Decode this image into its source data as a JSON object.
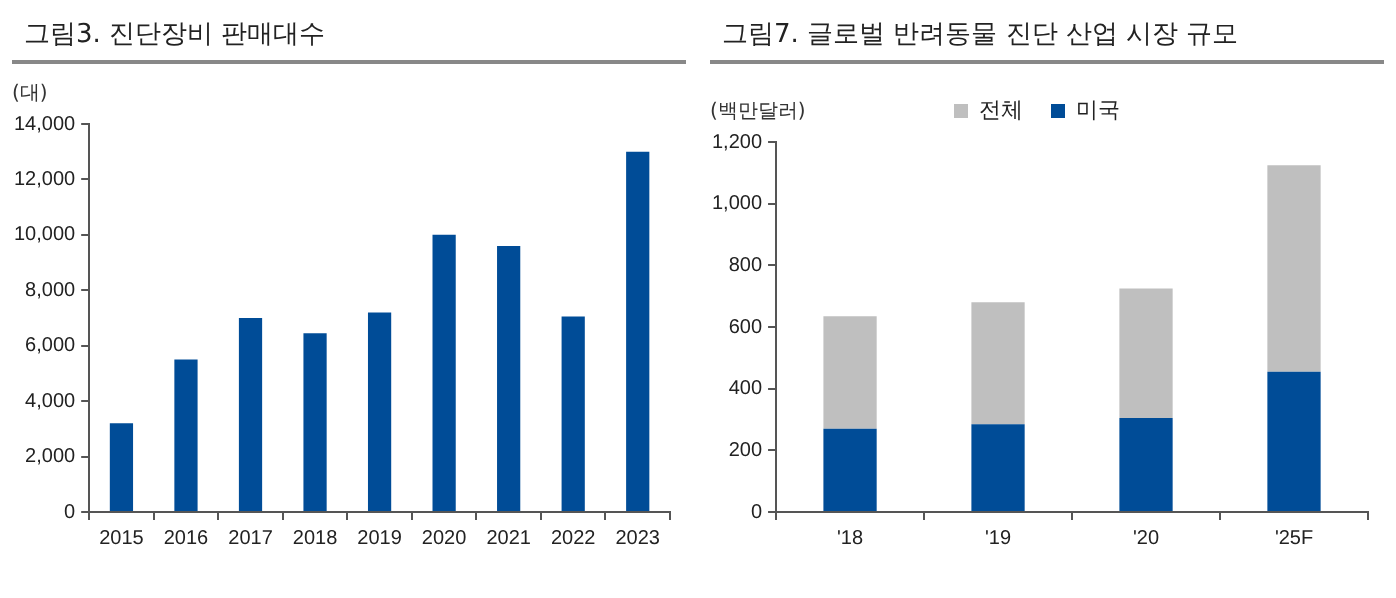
{
  "chart_data": [
    {
      "type": "bar",
      "title": "그림3. 진단장비 판매대수",
      "ylabel": "(대)",
      "categories": [
        "2015",
        "2016",
        "2017",
        "2018",
        "2019",
        "2020",
        "2021",
        "2022",
        "2023"
      ],
      "values": [
        3200,
        5500,
        7000,
        6450,
        7200,
        10000,
        9600,
        7050,
        13000
      ],
      "color": "#004c97",
      "ylim": [
        0,
        14000
      ],
      "yticks": [
        {
          "value": 0,
          "label": "0"
        },
        {
          "value": 2000,
          "label": "2,000"
        },
        {
          "value": 4000,
          "label": "4,000"
        },
        {
          "value": 6000,
          "label": "6,000"
        },
        {
          "value": 8000,
          "label": "8,000"
        },
        {
          "value": 10000,
          "label": "10,000"
        },
        {
          "value": 12000,
          "label": "12,000"
        },
        {
          "value": 14000,
          "label": "14,000"
        }
      ],
      "grid": false,
      "legend": false
    },
    {
      "type": "bar",
      "title": "그림7. 글로벌 반려동물 진단 산업 시장 규모",
      "ylabel": "(백만달러)",
      "categories": [
        "'18",
        "'19",
        "'20",
        "'25F"
      ],
      "stacked": true,
      "series": [
        {
          "name": "미국",
          "color": "#004c97",
          "values": [
            270,
            285,
            305,
            455
          ]
        },
        {
          "name": "전체",
          "color": "#bfbfbf",
          "values": [
            365,
            395,
            420,
            670
          ]
        }
      ],
      "ylim": [
        0,
        1200
      ],
      "yticks": [
        {
          "value": 0,
          "label": "0"
        },
        {
          "value": 200,
          "label": "200"
        },
        {
          "value": 400,
          "label": "400"
        },
        {
          "value": 600,
          "label": "600"
        },
        {
          "value": 800,
          "label": "800"
        },
        {
          "value": 1000,
          "label": "1,000"
        },
        {
          "value": 1200,
          "label": "1,200"
        }
      ],
      "grid": false,
      "legend": "top"
    }
  ]
}
